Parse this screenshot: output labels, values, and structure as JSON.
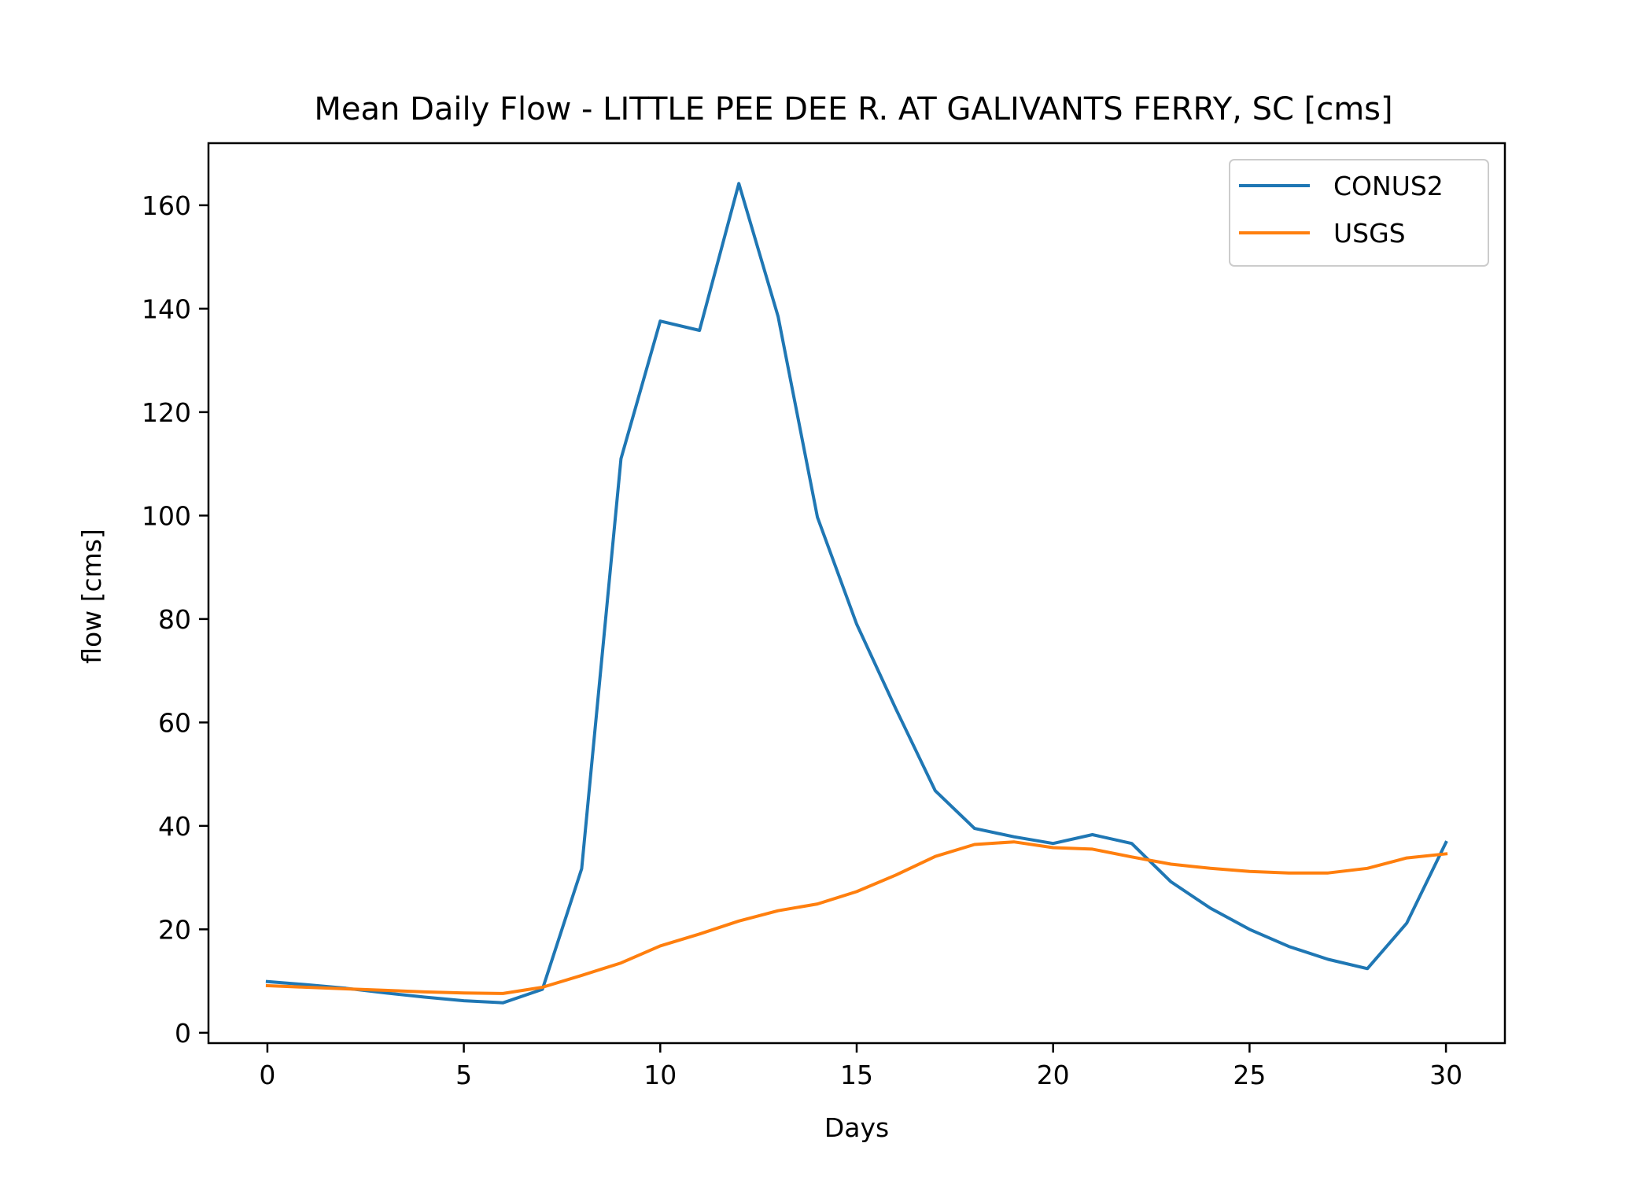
{
  "chart_data": {
    "type": "line",
    "title": "Mean Daily Flow - LITTLE PEE DEE R. AT GALIVANTS FERRY, SC [cms]",
    "xlabel": "Days",
    "ylabel": "flow [cms]",
    "xlim": [
      -1.5,
      31.5
    ],
    "ylim": [
      -2,
      172
    ],
    "xticks": [
      0,
      5,
      10,
      15,
      20,
      25,
      30
    ],
    "yticks": [
      0,
      20,
      40,
      60,
      80,
      100,
      120,
      140,
      160
    ],
    "grid": false,
    "legend_position": "top-right",
    "x": [
      0,
      1,
      2,
      3,
      4,
      5,
      6,
      7,
      8,
      9,
      10,
      11,
      12,
      13,
      14,
      15,
      16,
      17,
      18,
      19,
      20,
      21,
      22,
      23,
      24,
      25,
      26,
      27,
      28,
      29,
      30
    ],
    "series": [
      {
        "name": "CONUS2",
        "color": "#1f77b4",
        "values": [
          9.9,
          9.3,
          8.6,
          7.7,
          6.9,
          6.2,
          5.8,
          8.4,
          31.7,
          111,
          137.6,
          135.8,
          164.2,
          138.5,
          99.7,
          79,
          62.6,
          46.8,
          39.5,
          37.9,
          36.6,
          38.3,
          36.6,
          29.2,
          24.1,
          20,
          16.7,
          14.2,
          12.4,
          21.2,
          36.8
        ]
      },
      {
        "name": "USGS",
        "color": "#ff7f0e",
        "values": [
          9.1,
          8.8,
          8.5,
          8.2,
          7.9,
          7.7,
          7.6,
          8.8,
          11.1,
          13.5,
          16.8,
          19.1,
          21.6,
          23.6,
          24.9,
          27.3,
          30.5,
          34.1,
          36.4,
          36.9,
          35.8,
          35.5,
          34,
          32.6,
          31.8,
          31.2,
          30.9,
          30.9,
          31.8,
          33.8,
          34.6
        ]
      }
    ]
  }
}
